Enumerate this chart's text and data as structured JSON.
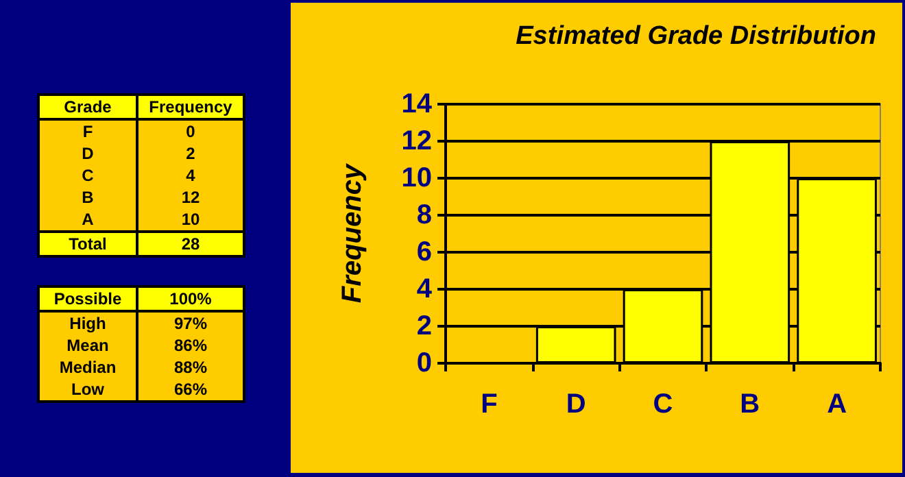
{
  "chart_data": {
    "type": "bar",
    "title": "Estimated Grade Distribution",
    "ylabel": "Frequency",
    "categories": [
      "F",
      "D",
      "C",
      "B",
      "A"
    ],
    "values": [
      0,
      2,
      4,
      12,
      10
    ],
    "color": "#ffff00",
    "ylim": [
      0,
      14
    ],
    "yticks": [
      0,
      2,
      4,
      6,
      8,
      10,
      12,
      14
    ],
    "grid": "y",
    "annotations": [
      "Grade",
      "0",
      "2",
      "4",
      "12",
      "10",
      "Total",
      "28",
      "Possible",
      "100%",
      "High",
      "97%",
      "Mean",
      "86%",
      "Median",
      "88%",
      "Low",
      "66%"
    ]
  }
}
